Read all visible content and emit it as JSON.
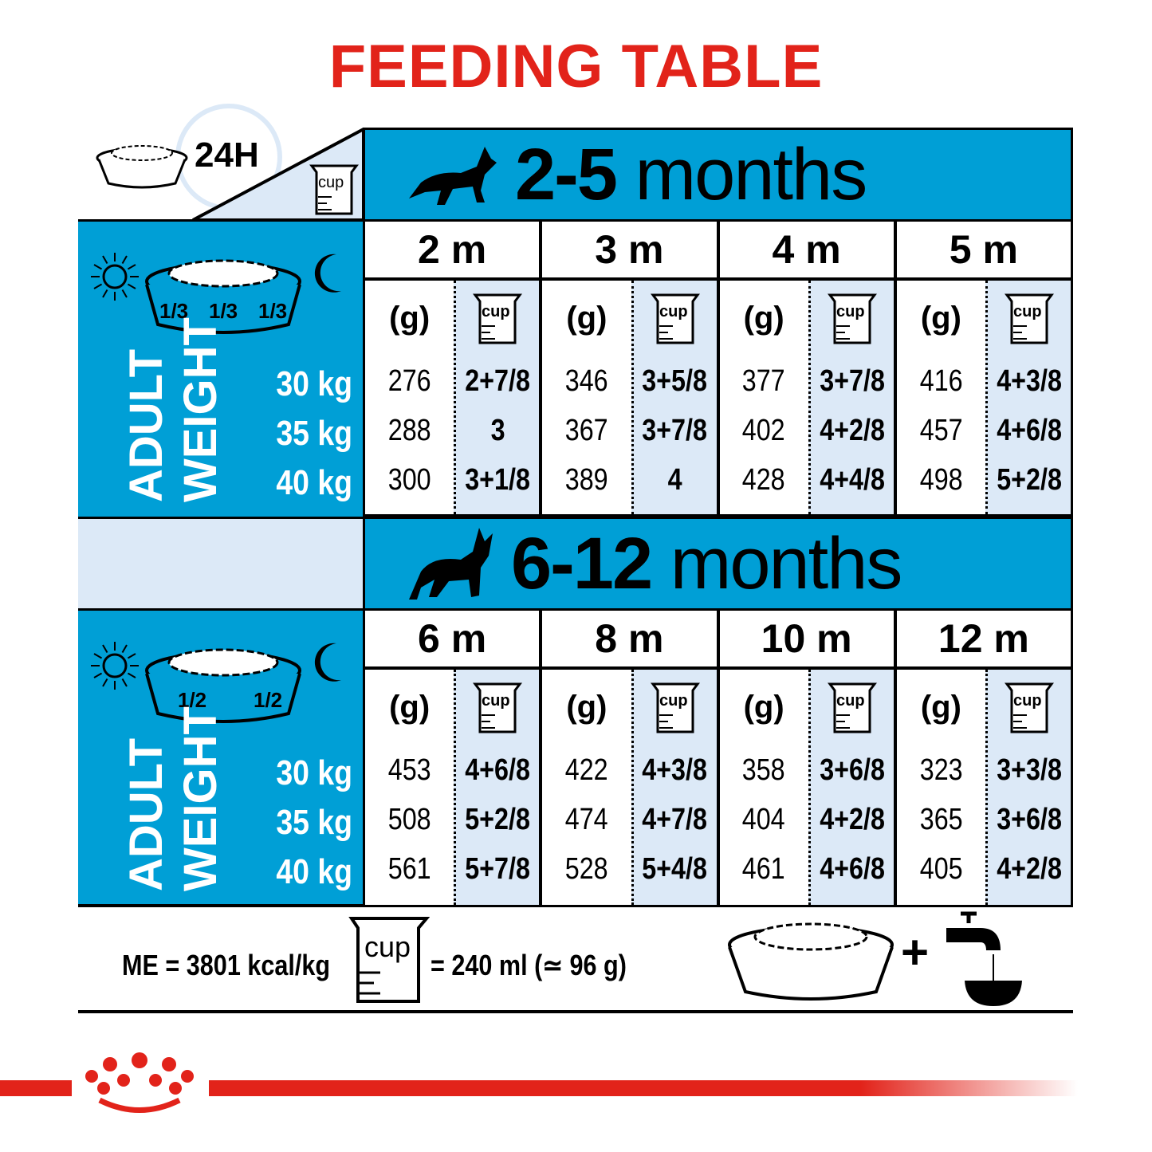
{
  "title": "FEEDING TABLE",
  "top_left": {
    "duration": "24H",
    "cup_label": "cup"
  },
  "colors": {
    "accent_blue": "#009fd6",
    "light_blue": "#dce9f7",
    "brand_red": "#e2231a"
  },
  "sections": [
    {
      "age_range_number": "2-5",
      "age_range_unit": "months",
      "bowl_portions": [
        "1/3",
        "1/3",
        "1/3"
      ],
      "weight_label": [
        "ADULT",
        "WEIGHT"
      ],
      "weights": [
        "30 kg",
        "35 kg",
        "40 kg"
      ],
      "columns": [
        {
          "month": "2 m",
          "grams": [
            "276",
            "288",
            "300"
          ],
          "cups": [
            "2+7/8",
            "3",
            "3+1/8"
          ]
        },
        {
          "month": "3 m",
          "grams": [
            "346",
            "367",
            "389"
          ],
          "cups": [
            "3+5/8",
            "3+7/8",
            "4"
          ]
        },
        {
          "month": "4 m",
          "grams": [
            "377",
            "402",
            "428"
          ],
          "cups": [
            "3+7/8",
            "4+2/8",
            "4+4/8"
          ]
        },
        {
          "month": "5 m",
          "grams": [
            "416",
            "457",
            "498"
          ],
          "cups": [
            "4+3/8",
            "4+6/8",
            "5+2/8"
          ]
        }
      ]
    },
    {
      "age_range_number": "6-12",
      "age_range_unit": "months",
      "bowl_portions": [
        "1/2",
        "1/2"
      ],
      "weight_label": [
        "ADULT",
        "WEIGHT"
      ],
      "weights": [
        "30 kg",
        "35 kg",
        "40 kg"
      ],
      "columns": [
        {
          "month": "6 m",
          "grams": [
            "453",
            "508",
            "561"
          ],
          "cups": [
            "4+6/8",
            "5+2/8",
            "5+7/8"
          ]
        },
        {
          "month": "8 m",
          "grams": [
            "422",
            "474",
            "528"
          ],
          "cups": [
            "4+3/8",
            "4+7/8",
            "5+4/8"
          ]
        },
        {
          "month": "10 m",
          "grams": [
            "358",
            "404",
            "461"
          ],
          "cups": [
            "3+6/8",
            "4+2/8",
            "4+6/8"
          ]
        },
        {
          "month": "12 m",
          "grams": [
            "323",
            "365",
            "405"
          ],
          "cups": [
            "3+3/8",
            "3+6/8",
            "4+2/8"
          ]
        }
      ]
    }
  ],
  "column_header_grams": "(g)",
  "cup_label": "cup",
  "footer": {
    "energy": "ME = 3801 kcal/kg",
    "cup_equivalence": "= 240 ml (≃ 96 g)",
    "plus": "+"
  },
  "icons": [
    "bowl-icon",
    "clock-icon",
    "cup-icon",
    "sun-icon",
    "moon-icon",
    "dog-icon",
    "water-tap-icon",
    "royal-canin-crown-logo"
  ]
}
